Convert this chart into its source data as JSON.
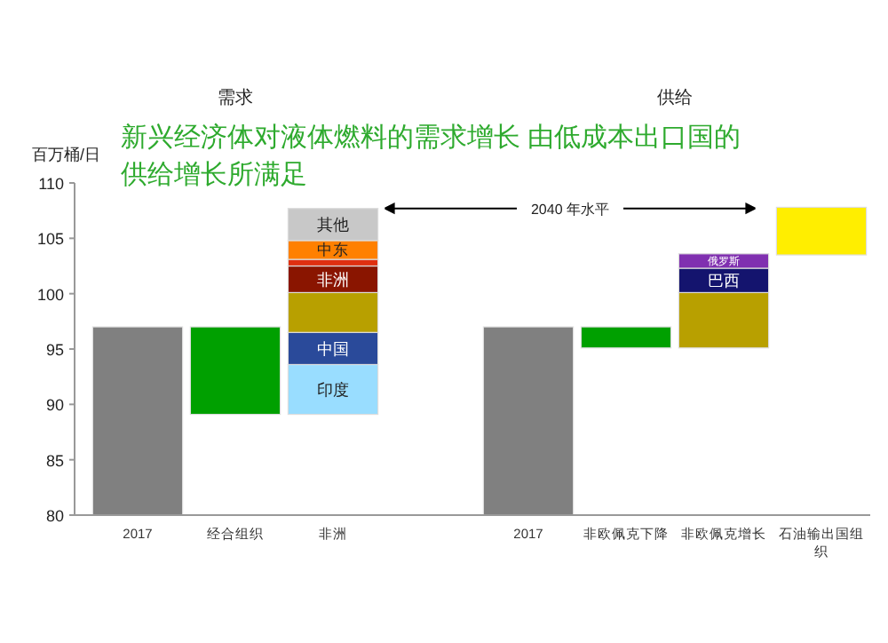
{
  "chart_data": {
    "type": "bar",
    "title": "新兴经济体对液体燃料的需求增长 由低成本出口国的供给增长所满足",
    "ylabel": "百万桶/日",
    "annotations": [
      "需求",
      "供给"
    ],
    "categories": [
      "2017",
      "经合组织",
      "非洲",
      "2017",
      "非欧佩克下降",
      "非欧佩克增长",
      "石油输出国组织"
    ],
    "series": [
      {
        "color": "#808080",
        "base": [
          80,
          null,
          null,
          80,
          null,
          null,
          null
        ],
        "values": [
          17,
          null,
          null,
          17,
          null,
          null,
          null
        ]
      },
      {
        "color": "#00a000",
        "base": [
          null,
          89.1,
          null,
          null,
          95.1,
          null,
          null
        ],
        "values": [
          null,
          7.9,
          null,
          null,
          1.9,
          null,
          null
        ]
      },
      {
        "name": "印度",
        "color": "#99ddff",
        "base": [
          null,
          null,
          89.1,
          null,
          null,
          null,
          null
        ],
        "values": [
          null,
          null,
          4.5,
          null,
          null,
          null,
          null
        ]
      },
      {
        "name": "中国",
        "color": "#2a4a9a",
        "base": [
          null,
          null,
          93.6,
          null,
          null,
          null,
          null
        ],
        "values": [
          null,
          null,
          2.9,
          null,
          null,
          null,
          null
        ]
      },
      {
        "color": "#b8a000",
        "base": [
          null,
          null,
          96.5,
          null,
          null,
          95.1,
          null
        ],
        "values": [
          null,
          null,
          3.6,
          null,
          null,
          5.0,
          null
        ]
      },
      {
        "name": "非洲",
        "color": "#8a1500",
        "base": [
          null,
          null,
          100.1,
          null,
          null,
          null,
          null
        ],
        "values": [
          null,
          null,
          2.4,
          null,
          null,
          null,
          null
        ]
      },
      {
        "color": "#e03010",
        "base": [
          null,
          null,
          102.5,
          null,
          null,
          null,
          null
        ],
        "values": [
          null,
          null,
          0.6,
          null,
          null,
          null,
          null
        ]
      },
      {
        "name": "中东",
        "color": "#ff8000",
        "base": [
          null,
          null,
          103.1,
          null,
          null,
          null,
          null
        ],
        "values": [
          null,
          null,
          1.7,
          null,
          null,
          null,
          null
        ]
      },
      {
        "name": "其他",
        "color": "#c8c8c8",
        "base": [
          null,
          null,
          104.8,
          null,
          null,
          null,
          null
        ],
        "values": [
          null,
          null,
          2.9,
          null,
          null,
          null,
          null
        ]
      },
      {
        "name": "巴西",
        "color": "#14146e",
        "base": [
          null,
          null,
          null,
          null,
          null,
          100.1,
          null
        ],
        "values": [
          null,
          null,
          null,
          null,
          null,
          2.2,
          null
        ]
      },
      {
        "name": "俄罗斯",
        "color": "#8030b0",
        "base": [
          null,
          null,
          null,
          null,
          null,
          102.3,
          null
        ],
        "values": [
          null,
          null,
          null,
          null,
          null,
          1.3,
          null
        ]
      },
      {
        "color": "#ffee00",
        "base": [
          null,
          null,
          null,
          null,
          null,
          null,
          103.5
        ],
        "values": [
          null,
          null,
          null,
          null,
          null,
          null,
          4.3
        ]
      }
    ],
    "ref_lines": [
      {
        "axis": "y",
        "value": 107.7,
        "label": "2040 年水平"
      }
    ],
    "ylim": [
      80,
      110
    ],
    "yticks": [
      80,
      85,
      90,
      95,
      100,
      105,
      110
    ],
    "grid": false
  }
}
